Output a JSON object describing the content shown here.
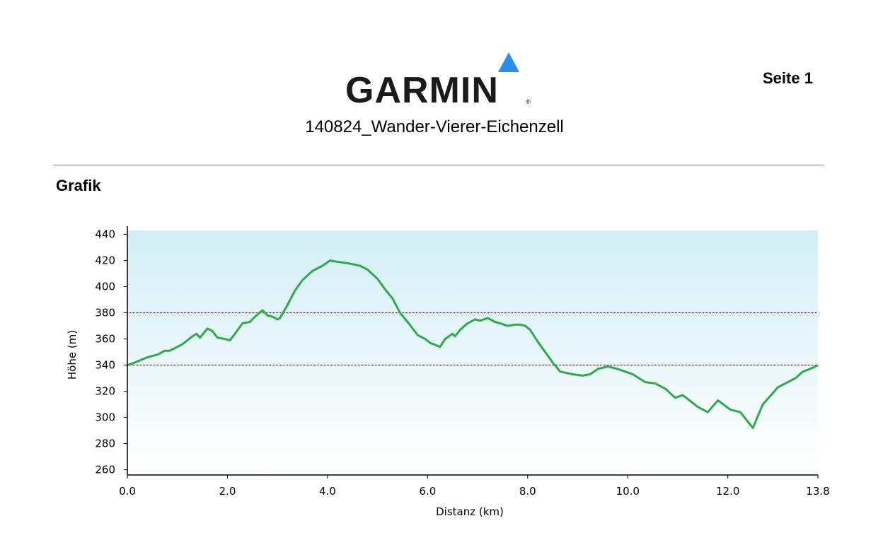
{
  "header": {
    "logo_text": "GARMIN",
    "logo_reg": "®",
    "title": "140824_Wander-Vierer-Eichenzell",
    "page_label": "Seite 1",
    "section_label": "Grafik"
  },
  "colors": {
    "line": "#2eaa4a",
    "bg_top": "#d3eef6",
    "bg_bottom": "#ffffff",
    "logo_triangle": "#2c8ee8"
  },
  "chart_data": {
    "type": "area",
    "xlabel": "Distanz (km)",
    "ylabel": "Höhe (m)",
    "xlim": [
      0,
      13.8
    ],
    "ylim": [
      256,
      443
    ],
    "x_ticks": [
      "0.0",
      "2.0",
      "4.0",
      "6.0",
      "8.0",
      "10.0",
      "12.0",
      "13.8"
    ],
    "y_ticks": [
      "440",
      "420",
      "400",
      "380",
      "360",
      "340",
      "320",
      "300",
      "280",
      "260"
    ],
    "reference_lines": [
      380,
      340
    ],
    "grid": false,
    "series": [
      {
        "x": [
          0.0,
          0.15,
          0.4,
          0.6,
          0.75,
          0.85,
          1.1,
          1.3,
          1.38,
          1.45,
          1.6,
          1.7,
          1.8,
          1.95,
          2.05,
          2.15,
          2.3,
          2.45,
          2.55,
          2.7,
          2.8,
          2.9,
          3.0,
          3.05,
          3.2,
          3.35,
          3.5,
          3.7,
          3.9,
          4.05,
          4.2,
          4.4,
          4.65,
          4.8,
          5.0,
          5.15,
          5.3,
          5.45,
          5.6,
          5.8,
          5.95,
          6.05,
          6.25,
          6.35,
          6.5,
          6.55,
          6.65,
          6.8,
          6.95,
          7.05,
          7.2,
          7.35,
          7.45,
          7.6,
          7.75,
          7.85,
          7.95,
          8.05,
          8.2,
          8.35,
          8.5,
          8.65,
          8.9,
          9.1,
          9.25,
          9.4,
          9.6,
          9.8,
          10.1,
          10.35,
          10.55,
          10.75,
          10.95,
          11.1,
          11.4,
          11.6,
          11.8,
          12.05,
          12.15,
          12.25,
          12.5,
          12.7,
          13.0,
          13.35,
          13.5,
          13.7,
          13.8
        ],
        "y": [
          340,
          342,
          346,
          348,
          351,
          351,
          356,
          362,
          364,
          361,
          368,
          366,
          361,
          360,
          359,
          364,
          372,
          373,
          377,
          382,
          378,
          377,
          375,
          376,
          386,
          397,
          405,
          412,
          416,
          420,
          419,
          418,
          416,
          413,
          406,
          398,
          391,
          380,
          373,
          363,
          360,
          357,
          354,
          360,
          364,
          362,
          367,
          372,
          375,
          374,
          376,
          373,
          372,
          370,
          371,
          371,
          370,
          367,
          358,
          350,
          342,
          335,
          333,
          332,
          333,
          337,
          339,
          337,
          333,
          327,
          326,
          322,
          315,
          317,
          308,
          304,
          313,
          306,
          305,
          304,
          292,
          310,
          323,
          330,
          335,
          338,
          340
        ]
      }
    ]
  }
}
